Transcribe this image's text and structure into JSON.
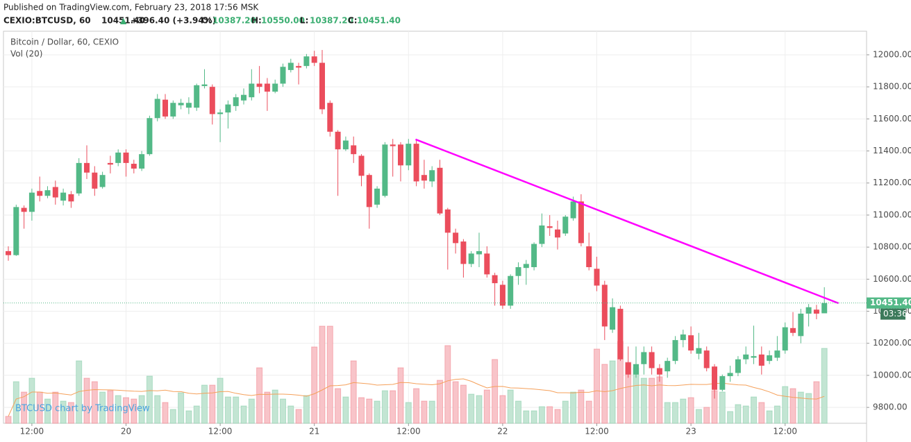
{
  "header": {
    "published": "Published on TradingView.com, February 23, 2018 17:56 MSK",
    "symbol": "CEXIO:BTCUSD, 60",
    "price": "10451.40",
    "arrow": "▲",
    "change": "+396.40 (+3.94%)",
    "ohlc": [
      {
        "label": "O:",
        "value": "10387.20"
      },
      {
        "label": "H:",
        "value": "10550.00"
      },
      {
        "label": "L:",
        "value": "10387.20"
      },
      {
        "label": "C:",
        "value": "10451.40"
      }
    ]
  },
  "chart_data": {
    "type": "candlestick",
    "title": "Bitcoin / Dollar, 60, CEXIO",
    "volume_label": "Vol (20)",
    "watermark": "BTCUSD chart by TradingView",
    "up_color": "#53b987",
    "down_color": "#eb4d5c",
    "up_volume_color": "#c3e5d3",
    "down_volume_color": "#f8c4c9",
    "volume_ma_color": "#f5a05a",
    "volume_ma_period": 20,
    "xlim": [
      -0.62,
      109.38
    ],
    "ylim": [
      9701,
      12147
    ],
    "xticks": [
      {
        "value": 3,
        "label": "12:00"
      },
      {
        "value": 15,
        "label": "20"
      },
      {
        "value": 27,
        "label": "12:00"
      },
      {
        "value": 39,
        "label": "21"
      },
      {
        "value": 51,
        "label": "12:00"
      },
      {
        "value": 63,
        "label": "22"
      },
      {
        "value": 75,
        "label": "12:00"
      },
      {
        "value": 87,
        "label": "23"
      },
      {
        "value": 99,
        "label": "12:00"
      }
    ],
    "yticks": [
      {
        "value": 9800,
        "label": "9800.00"
      },
      {
        "value": 10000,
        "label": "10000.00"
      },
      {
        "value": 10200,
        "label": "10200.00"
      },
      {
        "value": 10400,
        "label": "10400.00"
      },
      {
        "value": 10600,
        "label": "10600.00"
      },
      {
        "value": 10800,
        "label": "10800.00"
      },
      {
        "value": 11000,
        "label": "11000.00"
      },
      {
        "value": 11200,
        "label": "11200.00"
      },
      {
        "value": 11400,
        "label": "11400.00"
      },
      {
        "value": 11600,
        "label": "11600.00"
      },
      {
        "value": 11800,
        "label": "11800.00"
      },
      {
        "value": 12000,
        "label": "12000.00"
      }
    ],
    "grid": true,
    "open": [
      10775,
      10750,
      11045,
      11020,
      11150,
      11120,
      11175,
      11090,
      11130,
      11135,
      11325,
      11265,
      11175,
      11325,
      11325,
      11390,
      11320,
      11290,
      11380,
      11605,
      11720,
      11615,
      11685,
      11670,
      11670,
      11805,
      11800,
      11630,
      11640,
      11680,
      11715,
      11735,
      11820,
      11820,
      11770,
      11820,
      11905,
      11930,
      11930,
      11990,
      11950,
      11700,
      11520,
      11410,
      11435,
      11370,
      11250,
      11065,
      11120,
      11440,
      11440,
      11310,
      11445,
      11250,
      11210,
      11295,
      11035,
      10890,
      10835,
      10695,
      10755,
      10760,
      10625,
      10565,
      10435,
      10620,
      10670,
      10675,
      10820,
      10930,
      10910,
      10885,
      10980,
      11085,
      10805,
      10665,
      10565,
      10285,
      10415,
      10080,
      10005,
      10070,
      10145,
      10045,
      10025,
      10090,
      10220,
      10250,
      10135,
      10155,
      10055,
      9910,
      9995,
      10015,
      10100,
      10110,
      10130,
      10090,
      10110,
      10155,
      10295,
      10245,
      10385,
      10410,
      10387.2
    ],
    "high": [
      10805,
      11065,
      11060,
      11165,
      11240,
      11180,
      11215,
      11165,
      11150,
      11355,
      11435,
      11305,
      11270,
      11370,
      11410,
      11410,
      11345,
      11400,
      11620,
      11755,
      11755,
      11715,
      11725,
      11735,
      11820,
      11910,
      11815,
      11660,
      11715,
      11755,
      11790,
      11910,
      11930,
      11855,
      11845,
      11945,
      11975,
      11950,
      12005,
      12025,
      12030,
      11715,
      11530,
      11490,
      11490,
      11380,
      11260,
      11180,
      11455,
      11475,
      11455,
      11475,
      11465,
      11345,
      11305,
      11345,
      11045,
      10915,
      10850,
      10775,
      10890,
      10805,
      10640,
      10590,
      10630,
      10705,
      10720,
      10830,
      11010,
      11000,
      10965,
      11000,
      11115,
      11130,
      10890,
      10740,
      10590,
      10480,
      10435,
      10180,
      10180,
      10180,
      10180,
      10070,
      10110,
      10245,
      10285,
      10305,
      10265,
      10180,
      10070,
      10005,
      10060,
      10120,
      10180,
      10310,
      10180,
      10155,
      10245,
      10330,
      10395,
      10415,
      10445,
      10440,
      10550
    ],
    "low": [
      10715,
      10745,
      10915,
      10965,
      11085,
      11105,
      11065,
      11060,
      11045,
      11120,
      11225,
      11120,
      11165,
      11260,
      11305,
      11240,
      11260,
      11275,
      11370,
      11585,
      11600,
      11600,
      11660,
      11630,
      11650,
      11790,
      11565,
      11455,
      11540,
      11650,
      11690,
      11715,
      11760,
      11650,
      11760,
      11800,
      11890,
      11815,
      11915,
      11930,
      11630,
      11490,
      11120,
      11400,
      11325,
      11180,
      10915,
      11045,
      11110,
      11240,
      11210,
      11280,
      11180,
      11165,
      11175,
      11000,
      10660,
      10760,
      10610,
      10675,
      10675,
      10610,
      10435,
      10415,
      10415,
      10565,
      10565,
      10655,
      10800,
      10870,
      10785,
      10870,
      10965,
      10805,
      10655,
      10525,
      10220,
      10265,
      10090,
      9985,
      9985,
      10005,
      10005,
      9960,
      9985,
      10070,
      10175,
      10135,
      10100,
      10025,
      9855,
      9900,
      9960,
      9995,
      10070,
      10070,
      10005,
      10070,
      10090,
      10135,
      10245,
      10200,
      10305,
      10350,
      10387.2
    ],
    "close": [
      10750,
      11050,
      11020,
      11140,
      11120,
      11155,
      11110,
      11140,
      11085,
      11325,
      11265,
      11165,
      11250,
      11315,
      11390,
      11325,
      11290,
      11380,
      11605,
      11725,
      11615,
      11700,
      11700,
      11700,
      11810,
      11815,
      11630,
      11640,
      11690,
      11735,
      11750,
      11820,
      11800,
      11770,
      11820,
      11925,
      11950,
      11920,
      11990,
      11950,
      11660,
      11520,
      11410,
      11465,
      11380,
      11245,
      11050,
      11165,
      11440,
      11430,
      11310,
      11445,
      11210,
      11215,
      11280,
      11010,
      10890,
      10825,
      10695,
      10760,
      10775,
      10630,
      10575,
      10435,
      10620,
      10675,
      10695,
      10820,
      10935,
      10920,
      10860,
      10990,
      11085,
      10825,
      10675,
      10560,
      10305,
      10425,
      10100,
      10005,
      10070,
      10145,
      10045,
      10005,
      10090,
      10220,
      10255,
      10155,
      10170,
      10045,
      9910,
      9995,
      10015,
      10100,
      10130,
      10120,
      10060,
      10125,
      10155,
      10300,
      10265,
      10385,
      10425,
      10385,
      10451.4
    ],
    "volume": [
      10,
      60,
      45,
      65,
      45,
      35,
      45,
      32,
      30,
      90,
      65,
      60,
      45,
      47,
      40,
      37,
      35,
      40,
      68,
      40,
      30,
      20,
      44,
      18,
      25,
      55,
      55,
      65,
      38,
      38,
      25,
      35,
      80,
      45,
      48,
      35,
      25,
      20,
      40,
      110,
      140,
      140,
      50,
      38,
      90,
      37,
      35,
      32,
      47,
      47,
      80,
      30,
      50,
      32,
      32,
      62,
      112,
      60,
      55,
      42,
      40,
      48,
      92,
      40,
      48,
      32,
      18,
      18,
      24,
      24,
      20,
      32,
      45,
      48,
      32,
      107,
      85,
      90,
      118,
      88,
      80,
      65,
      65,
      67,
      30,
      30,
      35,
      37,
      20,
      23,
      47,
      45,
      17,
      27,
      25,
      38,
      30,
      18,
      25,
      53,
      50,
      45,
      43,
      60,
      108
    ],
    "trendline": {
      "x": [
        51.9,
        105.8
      ],
      "y": [
        11472,
        10450
      ],
      "color": "#ff00ff"
    },
    "last_price": {
      "value": 10451.4,
      "label": "10451.40"
    },
    "countdown": "03:36"
  }
}
